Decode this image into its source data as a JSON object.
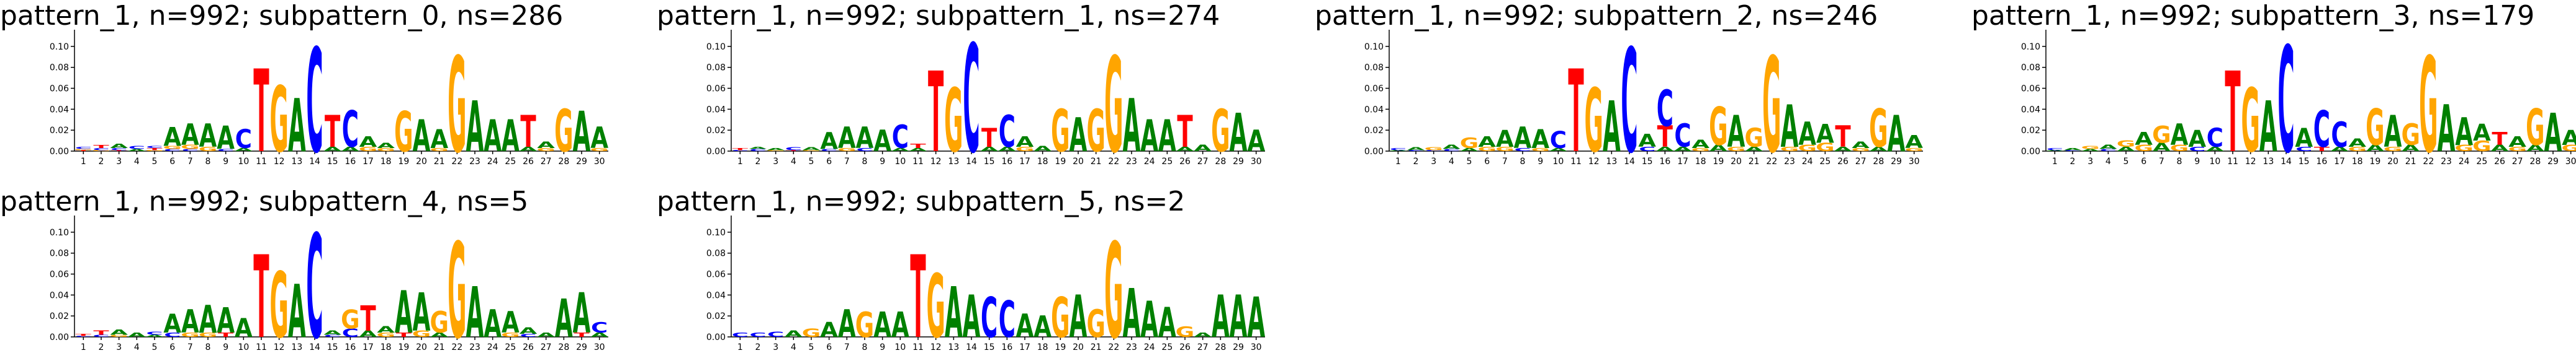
{
  "figure": {
    "colors": {
      "A": "#008000",
      "C": "#0000ff",
      "G": "#ffa500",
      "T": "#ff0000"
    }
  },
  "chart_data": [
    {
      "type": "sequence-logo",
      "title": "pattern_1, n=992; subpattern_0, ns=286",
      "x": [
        "1",
        "2",
        "3",
        "4",
        "5",
        "6",
        "7",
        "8",
        "9",
        "10",
        "11",
        "12",
        "13",
        "14",
        "15",
        "16",
        "17",
        "18",
        "19",
        "20",
        "21",
        "22",
        "23",
        "24",
        "25",
        "26",
        "27",
        "28",
        "29",
        "30"
      ],
      "yticks": [
        "0.00",
        "0.02",
        "0.04",
        "0.06",
        "0.08",
        "0.10"
      ],
      "ylim": [
        0,
        0.11
      ],
      "positions": [
        {
          "C": 0.002,
          "T": 0.001,
          "G": 0.001
        },
        {
          "T": 0.003,
          "C": 0.002,
          "G": 0.001
        },
        {
          "A": 0.004,
          "C": 0.002,
          "T": 0.001
        },
        {
          "C": 0.003,
          "A": 0.002
        },
        {
          "T": 0.002,
          "C": 0.002,
          "G": 0.001
        },
        {
          "A": 0.018,
          "G": 0.003,
          "C": 0.002
        },
        {
          "A": 0.02,
          "G": 0.004,
          "C": 0.002
        },
        {
          "A": 0.022,
          "G": 0.004
        },
        {
          "A": 0.022,
          "C": 0.002
        },
        {
          "C": 0.018,
          "A": 0.003
        },
        {
          "T": 0.078
        },
        {
          "G": 0.062
        },
        {
          "A": 0.05
        },
        {
          "C": 0.098
        },
        {
          "T": 0.03,
          "A": 0.004
        },
        {
          "C": 0.034,
          "A": 0.004
        },
        {
          "A": 0.01,
          "G": 0.004
        },
        {
          "A": 0.005,
          "G": 0.003
        },
        {
          "G": 0.038
        },
        {
          "A": 0.03
        },
        {
          "A": 0.018,
          "G": 0.003
        },
        {
          "G": 0.09
        },
        {
          "A": 0.048
        },
        {
          "A": 0.03
        },
        {
          "A": 0.03
        },
        {
          "T": 0.03,
          "A": 0.004
        },
        {
          "A": 0.006,
          "G": 0.003
        },
        {
          "G": 0.04
        },
        {
          "A": 0.038
        },
        {
          "A": 0.02,
          "G": 0.003
        }
      ]
    },
    {
      "type": "sequence-logo",
      "title": "pattern_1, n=992; subpattern_1, ns=274",
      "x": [
        "1",
        "2",
        "3",
        "4",
        "5",
        "6",
        "7",
        "8",
        "9",
        "10",
        "11",
        "12",
        "13",
        "14",
        "15",
        "16",
        "17",
        "18",
        "19",
        "20",
        "21",
        "22",
        "23",
        "24",
        "25",
        "26",
        "27",
        "28",
        "29",
        "30"
      ],
      "yticks": [
        "0.00",
        "0.02",
        "0.04",
        "0.06",
        "0.08",
        "0.10"
      ],
      "ylim": [
        0,
        0.11
      ],
      "positions": [
        {
          "T": 0.002,
          "C": 0.001
        },
        {
          "C": 0.002,
          "A": 0.002
        },
        {
          "A": 0.002,
          "G": 0.001
        },
        {
          "C": 0.003,
          "T": 0.001
        },
        {
          "A": 0.003,
          "G": 0.001
        },
        {
          "A": 0.016,
          "C": 0.002
        },
        {
          "A": 0.02,
          "G": 0.003
        },
        {
          "A": 0.02,
          "C": 0.003
        },
        {
          "A": 0.02
        },
        {
          "C": 0.022,
          "A": 0.003
        },
        {
          "T": 0.004,
          "A": 0.003
        },
        {
          "T": 0.076
        },
        {
          "G": 0.06
        },
        {
          "C": 0.102
        },
        {
          "T": 0.018,
          "A": 0.004
        },
        {
          "C": 0.03,
          "A": 0.004
        },
        {
          "A": 0.01,
          "G": 0.004
        },
        {
          "A": 0.005
        },
        {
          "G": 0.04
        },
        {
          "A": 0.032
        },
        {
          "G": 0.04
        },
        {
          "G": 0.09
        },
        {
          "A": 0.05
        },
        {
          "A": 0.03
        },
        {
          "A": 0.03
        },
        {
          "T": 0.03,
          "A": 0.004
        },
        {
          "A": 0.006
        },
        {
          "G": 0.04
        },
        {
          "A": 0.036
        },
        {
          "A": 0.02
        }
      ]
    },
    {
      "type": "sequence-logo",
      "title": "pattern_1, n=992; subpattern_2, ns=246",
      "x": [
        "1",
        "2",
        "3",
        "4",
        "5",
        "6",
        "7",
        "8",
        "9",
        "10",
        "11",
        "12",
        "13",
        "14",
        "15",
        "16",
        "17",
        "18",
        "19",
        "20",
        "21",
        "22",
        "23",
        "24",
        "25",
        "26",
        "27",
        "28",
        "29",
        "30"
      ],
      "yticks": [
        "0.00",
        "0.02",
        "0.04",
        "0.06",
        "0.08",
        "0.10"
      ],
      "ylim": [
        0,
        0.11
      ],
      "positions": [
        {
          "C": 0.002,
          "A": 0.001
        },
        {
          "A": 0.003,
          "C": 0.001
        },
        {
          "G": 0.003,
          "C": 0.001
        },
        {
          "A": 0.004,
          "C": 0.002
        },
        {
          "G": 0.01,
          "A": 0.003
        },
        {
          "A": 0.01,
          "G": 0.004
        },
        {
          "A": 0.016,
          "G": 0.004
        },
        {
          "A": 0.02,
          "C": 0.003
        },
        {
          "A": 0.018,
          "G": 0.003
        },
        {
          "C": 0.016,
          "A": 0.003
        },
        {
          "T": 0.078
        },
        {
          "G": 0.06
        },
        {
          "A": 0.048
        },
        {
          "C": 0.098
        },
        {
          "A": 0.012,
          "C": 0.004
        },
        {
          "C": 0.034,
          "T": 0.02,
          "A": 0.004
        },
        {
          "C": 0.022,
          "A": 0.004
        },
        {
          "A": 0.008,
          "G": 0.003
        },
        {
          "G": 0.036,
          "A": 0.006
        },
        {
          "A": 0.03,
          "G": 0.004
        },
        {
          "G": 0.018,
          "A": 0.004
        },
        {
          "G": 0.09
        },
        {
          "A": 0.04,
          "G": 0.004
        },
        {
          "A": 0.022,
          "G": 0.006
        },
        {
          "A": 0.018,
          "G": 0.008
        },
        {
          "T": 0.02,
          "A": 0.004
        },
        {
          "A": 0.006,
          "G": 0.003
        },
        {
          "G": 0.036,
          "A": 0.004
        },
        {
          "A": 0.034
        },
        {
          "A": 0.012,
          "G": 0.003
        }
      ]
    },
    {
      "type": "sequence-logo",
      "title": "pattern_1, n=992; subpattern_3, ns=179",
      "x": [
        "1",
        "2",
        "3",
        "4",
        "5",
        "6",
        "7",
        "8",
        "9",
        "10",
        "11",
        "12",
        "13",
        "14",
        "15",
        "16",
        "17",
        "18",
        "19",
        "20",
        "21",
        "22",
        "23",
        "24",
        "25",
        "26",
        "27",
        "28",
        "29",
        "30"
      ],
      "yticks": [
        "0.00",
        "0.02",
        "0.04",
        "0.06",
        "0.08",
        "0.10"
      ],
      "ylim": [
        0,
        0.11
      ],
      "positions": [
        {
          "C": 0.002,
          "A": 0.001
        },
        {
          "A": 0.002,
          "C": 0.001
        },
        {
          "G": 0.003,
          "A": 0.002
        },
        {
          "A": 0.004,
          "C": 0.002
        },
        {
          "G": 0.006,
          "A": 0.004
        },
        {
          "A": 0.012,
          "G": 0.006
        },
        {
          "G": 0.016,
          "A": 0.008
        },
        {
          "A": 0.02,
          "G": 0.006
        },
        {
          "A": 0.016,
          "C": 0.004
        },
        {
          "C": 0.018,
          "A": 0.004
        },
        {
          "T": 0.076
        },
        {
          "G": 0.06
        },
        {
          "A": 0.048
        },
        {
          "C": 0.1
        },
        {
          "A": 0.018,
          "C": 0.004
        },
        {
          "C": 0.034,
          "T": 0.004
        },
        {
          "C": 0.024,
          "A": 0.004
        },
        {
          "A": 0.008,
          "G": 0.004
        },
        {
          "G": 0.034,
          "A": 0.006
        },
        {
          "A": 0.03,
          "G": 0.004
        },
        {
          "G": 0.02,
          "A": 0.006
        },
        {
          "G": 0.09
        },
        {
          "A": 0.044
        },
        {
          "A": 0.026,
          "G": 0.006
        },
        {
          "A": 0.016,
          "G": 0.01
        },
        {
          "T": 0.012,
          "A": 0.006
        },
        {
          "A": 0.01,
          "G": 0.004
        },
        {
          "G": 0.034,
          "A": 0.006
        },
        {
          "A": 0.036
        },
        {
          "A": 0.014,
          "G": 0.006
        }
      ]
    },
    {
      "type": "sequence-logo",
      "title": "pattern_1, n=992; subpattern_4, ns=5",
      "x": [
        "1",
        "2",
        "3",
        "4",
        "5",
        "6",
        "7",
        "8",
        "9",
        "10",
        "11",
        "12",
        "13",
        "14",
        "15",
        "16",
        "17",
        "18",
        "19",
        "20",
        "21",
        "22",
        "23",
        "24",
        "25",
        "26",
        "27",
        "28",
        "29",
        "30"
      ],
      "yticks": [
        "0.00",
        "0.02",
        "0.04",
        "0.06",
        "0.08",
        "0.10"
      ],
      "ylim": [
        0,
        0.11
      ],
      "positions": [
        {
          "T": 0.002,
          "C": 0.001
        },
        {
          "T": 0.004,
          "C": 0.002
        },
        {
          "A": 0.005,
          "G": 0.002
        },
        {
          "A": 0.004
        },
        {
          "C": 0.003,
          "A": 0.002
        },
        {
          "A": 0.018,
          "C": 0.004
        },
        {
          "A": 0.022,
          "G": 0.004
        },
        {
          "A": 0.026,
          "G": 0.004
        },
        {
          "A": 0.024,
          "T": 0.004
        },
        {
          "A": 0.018
        },
        {
          "T": 0.078
        },
        {
          "G": 0.062
        },
        {
          "A": 0.05
        },
        {
          "C": 0.098
        },
        {
          "A": 0.004,
          "C": 0.002
        },
        {
          "G": 0.018,
          "C": 0.008
        },
        {
          "T": 0.024,
          "A": 0.006
        },
        {
          "A": 0.006,
          "G": 0.004
        },
        {
          "A": 0.04,
          "T": 0.004
        },
        {
          "A": 0.036,
          "G": 0.006
        },
        {
          "G": 0.02,
          "A": 0.004
        },
        {
          "G": 0.09
        },
        {
          "A": 0.048
        },
        {
          "A": 0.026
        },
        {
          "A": 0.02,
          "G": 0.004
        },
        {
          "A": 0.006,
          "C": 0.003
        },
        {
          "A": 0.004
        },
        {
          "A": 0.036
        },
        {
          "A": 0.038,
          "T": 0.004
        },
        {
          "C": 0.01,
          "A": 0.004
        }
      ]
    },
    {
      "type": "sequence-logo",
      "title": "pattern_1, n=992; subpattern_5, ns=2",
      "x": [
        "1",
        "2",
        "3",
        "4",
        "5",
        "6",
        "7",
        "8",
        "9",
        "10",
        "11",
        "12",
        "13",
        "14",
        "15",
        "16",
        "17",
        "18",
        "19",
        "20",
        "21",
        "22",
        "23",
        "24",
        "25",
        "26",
        "27",
        "28",
        "29",
        "30"
      ],
      "yticks": [
        "0.00",
        "0.02",
        "0.04",
        "0.06",
        "0.08",
        "0.10"
      ],
      "ylim": [
        0,
        0.11
      ],
      "positions": [
        {
          "C": 0.004
        },
        {
          "C": 0.004
        },
        {
          "C": 0.005
        },
        {
          "A": 0.006
        },
        {
          "G": 0.008
        },
        {
          "A": 0.014
        },
        {
          "A": 0.026
        },
        {
          "G": 0.024
        },
        {
          "A": 0.024
        },
        {
          "A": 0.024
        },
        {
          "T": 0.078
        },
        {
          "G": 0.06
        },
        {
          "A": 0.048
        },
        {
          "A": 0.04
        },
        {
          "C": 0.038
        },
        {
          "C": 0.034
        },
        {
          "A": 0.022
        },
        {
          "A": 0.02
        },
        {
          "G": 0.038
        },
        {
          "A": 0.04
        },
        {
          "G": 0.026
        },
        {
          "G": 0.09
        },
        {
          "A": 0.046
        },
        {
          "A": 0.034
        },
        {
          "A": 0.028
        },
        {
          "G": 0.01
        },
        {
          "A": 0.004
        },
        {
          "A": 0.04
        },
        {
          "A": 0.04
        },
        {
          "A": 0.038
        }
      ]
    }
  ]
}
